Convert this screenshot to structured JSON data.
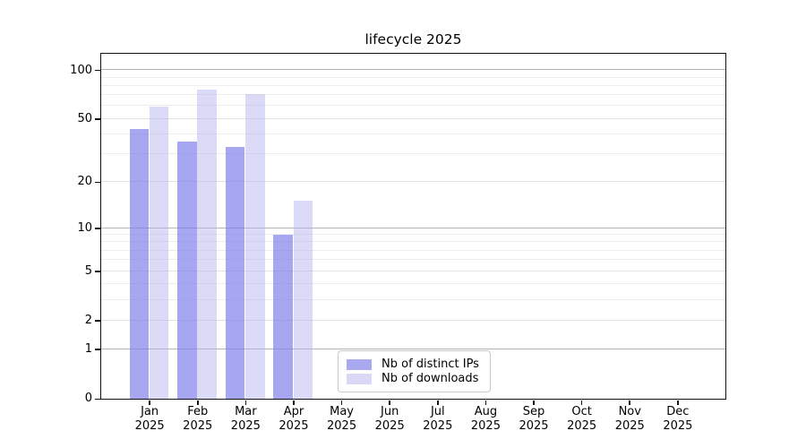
{
  "chart_data": {
    "type": "bar",
    "title": "lifecycle 2025",
    "x_tick_year": "2025",
    "categories": [
      "Jan",
      "Feb",
      "Mar",
      "Apr",
      "May",
      "Jun",
      "Jul",
      "Aug",
      "Sep",
      "Oct",
      "Nov",
      "Dec"
    ],
    "series": [
      {
        "name": "Nb of distinct IPs",
        "color": "#a9a9f0",
        "fill": "rgba(126,126,234,0.68)",
        "values": [
          43,
          36,
          33,
          9,
          0,
          0,
          0,
          0,
          0,
          0,
          0,
          0
        ]
      },
      {
        "name": "Nb of downloads",
        "color": "#d9d9f7",
        "fill": "rgba(180,180,240,0.48)",
        "values": [
          59,
          75,
          71,
          15,
          0,
          0,
          0,
          0,
          0,
          0,
          0,
          0
        ]
      }
    ],
    "y_axis": {
      "scale": "log10(1+y)",
      "ticks": [
        0,
        1,
        2,
        5,
        10,
        20,
        50,
        100
      ],
      "range": [
        0,
        126
      ]
    },
    "gridlines": {
      "major": {
        "values": [
          1,
          10,
          100
        ],
        "color": "#b3b3b3"
      },
      "mid": {
        "values": [
          2,
          5,
          20,
          50
        ],
        "color": "#e2e2e2"
      },
      "minor": {
        "values": [
          3,
          4,
          6,
          7,
          8,
          9,
          30,
          40,
          60,
          70,
          80,
          90
        ],
        "color": "#ececec"
      }
    },
    "legend_position": "bottom-center",
    "grid": "on"
  }
}
